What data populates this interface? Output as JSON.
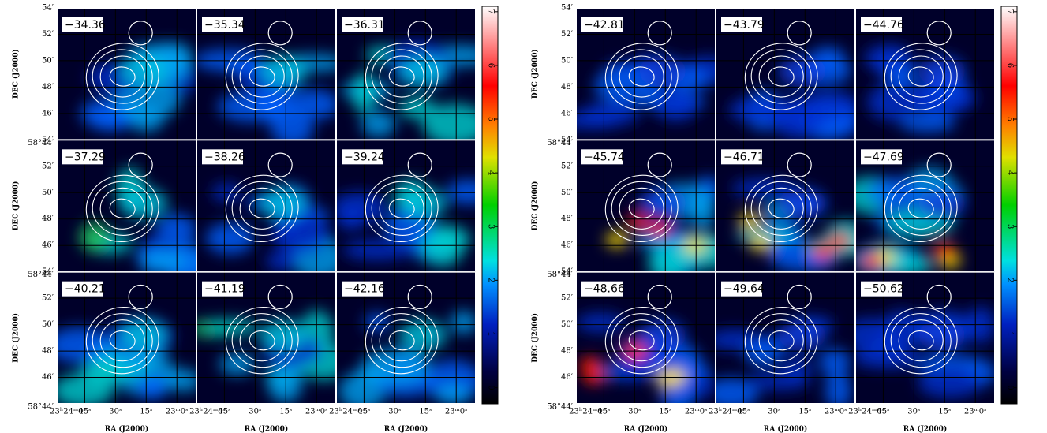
{
  "groups": [
    {
      "panels": [
        "−34.36",
        "−35.34",
        "−36.31",
        "−37.29",
        "−38.26",
        "−39.24",
        "−40.21",
        "−41.19",
        "−42.16"
      ],
      "colorbar": {
        "lim": [
          -0.3,
          7.1
        ],
        "ticks": [
          0,
          1,
          2,
          3,
          4,
          5,
          6,
          7
        ]
      }
    },
    {
      "panels": [
        "−42.81",
        "−43.79",
        "−44.76",
        "−45.74",
        "−46.71",
        "−47.69",
        "−48.66",
        "−49.64",
        "−50.62"
      ],
      "colorbar": {
        "lim": [
          -0.3,
          7.1
        ],
        "ticks": [
          0,
          1,
          2,
          3,
          4,
          5,
          6,
          7
        ]
      }
    }
  ],
  "y_axis": {
    "label": "DEC (J2000)",
    "ticks": [
      "54′",
      "52′",
      "50′",
      "48′",
      "46′",
      "58°44′"
    ]
  },
  "x_axis": {
    "label": "RA (J2000)",
    "ticks": [
      "23ʰ24ᵐ0ˢ",
      "45ˢ",
      "30ˢ",
      "15ˢ",
      "23ᵐ0ˢ"
    ]
  }
}
